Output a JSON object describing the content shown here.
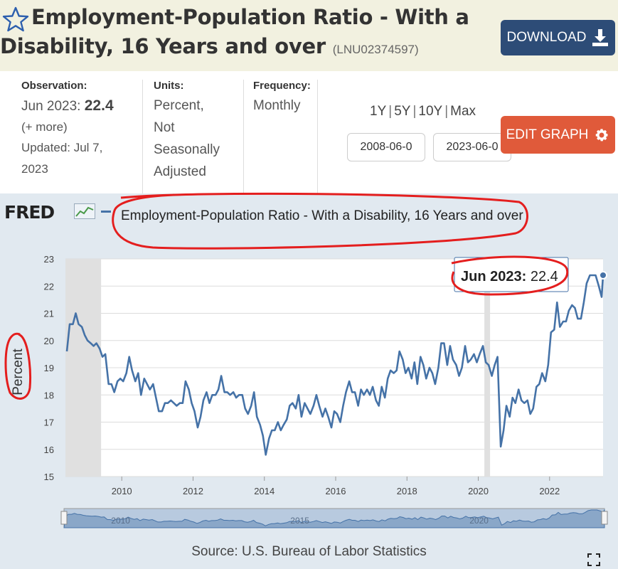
{
  "header": {
    "title": "Employment-Population Ratio - With a Disability, 16 Years and over",
    "series_id": "(LNU02374597)",
    "download_label": "DOWNLOAD",
    "star_icon": "star-icon",
    "download_icon": "download-icon"
  },
  "meta": {
    "observation_label": "Observation:",
    "observation_date": "Jun 2023:",
    "observation_value": "22.4",
    "more": "(+ more)",
    "updated_line1": "Updated: Jul 7,",
    "updated_line2": "2023",
    "units_label": "Units:",
    "units_lines": [
      "Percent,",
      "Not",
      "Seasonally",
      "Adjusted"
    ],
    "frequency_label": "Frequency:",
    "frequency_value": "Monthly"
  },
  "controls": {
    "ranges": [
      "1Y",
      "5Y",
      "10Y",
      "Max"
    ],
    "start_date": "2008-06-0",
    "end_date": "2023-06-0",
    "edit_label": "EDIT GRAPH",
    "edit_icon": "gear-icon"
  },
  "chart": {
    "logo": "FRED",
    "source": "Source: U.S. Bureau of Labor Statistics",
    "tooltip_date": "Jun 2023:",
    "tooltip_value": "22.4",
    "colors": {
      "line": "#4572a7",
      "recession": "#e0e0e0",
      "annotation": "#e41e1e"
    }
  },
  "chart_data": {
    "type": "line",
    "title": "Employment-Population Ratio - With a Disability, 16 Years and over",
    "ylabel": "Percent",
    "ylim": [
      15,
      23
    ],
    "yticks": [
      15,
      16,
      17,
      18,
      19,
      20,
      21,
      22,
      23
    ],
    "xlim": [
      2008.42,
      2023.5
    ],
    "xticks": [
      2010,
      2012,
      2014,
      2016,
      2018,
      2020,
      2022
    ],
    "grid": true,
    "recessions": [
      [
        2008.42,
        2009.42
      ],
      [
        2020.17,
        2020.33
      ]
    ],
    "navigator_labels": [
      "2010",
      "2015",
      "2020"
    ],
    "series": [
      {
        "values": [
          [
            2008.46,
            19.6
          ],
          [
            2008.54,
            20.6
          ],
          [
            2008.63,
            20.6
          ],
          [
            2008.71,
            21.0
          ],
          [
            2008.79,
            20.6
          ],
          [
            2008.88,
            20.5
          ],
          [
            2008.96,
            20.2
          ],
          [
            2009.04,
            20.0
          ],
          [
            2009.13,
            19.9
          ],
          [
            2009.21,
            19.8
          ],
          [
            2009.29,
            19.9
          ],
          [
            2009.38,
            19.7
          ],
          [
            2009.46,
            19.4
          ],
          [
            2009.54,
            19.5
          ],
          [
            2009.63,
            18.4
          ],
          [
            2009.71,
            18.4
          ],
          [
            2009.79,
            18.1
          ],
          [
            2009.88,
            18.5
          ],
          [
            2009.96,
            18.6
          ],
          [
            2010.04,
            18.5
          ],
          [
            2010.13,
            18.8
          ],
          [
            2010.21,
            19.4
          ],
          [
            2010.29,
            18.9
          ],
          [
            2010.38,
            18.5
          ],
          [
            2010.46,
            18.8
          ],
          [
            2010.54,
            18.0
          ],
          [
            2010.63,
            18.6
          ],
          [
            2010.71,
            18.4
          ],
          [
            2010.79,
            18.2
          ],
          [
            2010.88,
            18.4
          ],
          [
            2010.96,
            17.9
          ],
          [
            2011.04,
            17.4
          ],
          [
            2011.13,
            17.4
          ],
          [
            2011.21,
            17.7
          ],
          [
            2011.29,
            17.7
          ],
          [
            2011.38,
            17.8
          ],
          [
            2011.46,
            17.7
          ],
          [
            2011.54,
            17.6
          ],
          [
            2011.63,
            17.7
          ],
          [
            2011.71,
            17.7
          ],
          [
            2011.79,
            18.5
          ],
          [
            2011.88,
            18.2
          ],
          [
            2011.96,
            17.7
          ],
          [
            2012.04,
            17.4
          ],
          [
            2012.13,
            16.8
          ],
          [
            2012.21,
            17.2
          ],
          [
            2012.29,
            17.8
          ],
          [
            2012.38,
            18.1
          ],
          [
            2012.46,
            17.7
          ],
          [
            2012.54,
            18.0
          ],
          [
            2012.63,
            18.0
          ],
          [
            2012.71,
            18.2
          ],
          [
            2012.79,
            18.7
          ],
          [
            2012.88,
            18.1
          ],
          [
            2012.96,
            18.1
          ],
          [
            2013.04,
            18.0
          ],
          [
            2013.13,
            18.1
          ],
          [
            2013.21,
            17.9
          ],
          [
            2013.29,
            18.0
          ],
          [
            2013.38,
            18.0
          ],
          [
            2013.46,
            17.5
          ],
          [
            2013.54,
            17.3
          ],
          [
            2013.63,
            17.6
          ],
          [
            2013.71,
            18.1
          ],
          [
            2013.79,
            17.2
          ],
          [
            2013.88,
            16.9
          ],
          [
            2013.96,
            16.5
          ],
          [
            2014.04,
            15.8
          ],
          [
            2014.13,
            16.4
          ],
          [
            2014.21,
            16.7
          ],
          [
            2014.29,
            16.7
          ],
          [
            2014.38,
            17.0
          ],
          [
            2014.46,
            16.7
          ],
          [
            2014.54,
            16.9
          ],
          [
            2014.63,
            17.1
          ],
          [
            2014.71,
            17.6
          ],
          [
            2014.79,
            17.7
          ],
          [
            2014.88,
            17.5
          ],
          [
            2014.96,
            18.0
          ],
          [
            2015.04,
            17.2
          ],
          [
            2015.13,
            17.7
          ],
          [
            2015.21,
            17.5
          ],
          [
            2015.29,
            17.3
          ],
          [
            2015.38,
            17.6
          ],
          [
            2015.46,
            18.0
          ],
          [
            2015.54,
            17.6
          ],
          [
            2015.63,
            17.2
          ],
          [
            2015.71,
            17.5
          ],
          [
            2015.79,
            17.2
          ],
          [
            2015.88,
            16.8
          ],
          [
            2015.96,
            17.4
          ],
          [
            2016.04,
            17.3
          ],
          [
            2016.13,
            17.0
          ],
          [
            2016.21,
            17.6
          ],
          [
            2016.29,
            18.1
          ],
          [
            2016.38,
            18.5
          ],
          [
            2016.46,
            18.1
          ],
          [
            2016.54,
            18.1
          ],
          [
            2016.63,
            17.6
          ],
          [
            2016.71,
            18.2
          ],
          [
            2016.79,
            18.0
          ],
          [
            2016.88,
            18.2
          ],
          [
            2016.96,
            18.0
          ],
          [
            2017.04,
            18.3
          ],
          [
            2017.13,
            17.8
          ],
          [
            2017.21,
            17.6
          ],
          [
            2017.29,
            18.3
          ],
          [
            2017.38,
            17.9
          ],
          [
            2017.46,
            18.6
          ],
          [
            2017.54,
            18.9
          ],
          [
            2017.63,
            18.8
          ],
          [
            2017.71,
            18.9
          ],
          [
            2017.79,
            19.6
          ],
          [
            2017.88,
            19.3
          ],
          [
            2017.96,
            18.8
          ],
          [
            2018.04,
            19.0
          ],
          [
            2018.13,
            18.6
          ],
          [
            2018.21,
            19.2
          ],
          [
            2018.29,
            18.4
          ],
          [
            2018.38,
            19.4
          ],
          [
            2018.46,
            19.1
          ],
          [
            2018.54,
            18.6
          ],
          [
            2018.63,
            19.0
          ],
          [
            2018.71,
            18.8
          ],
          [
            2018.79,
            18.4
          ],
          [
            2018.88,
            19.0
          ],
          [
            2018.96,
            19.9
          ],
          [
            2019.04,
            19.9
          ],
          [
            2019.13,
            19.1
          ],
          [
            2019.21,
            19.8
          ],
          [
            2019.29,
            19.3
          ],
          [
            2019.38,
            19.1
          ],
          [
            2019.46,
            18.7
          ],
          [
            2019.54,
            19.0
          ],
          [
            2019.63,
            19.8
          ],
          [
            2019.71,
            19.2
          ],
          [
            2019.79,
            19.3
          ],
          [
            2019.88,
            19.5
          ],
          [
            2019.96,
            19.2
          ],
          [
            2020.04,
            19.5
          ],
          [
            2020.13,
            19.8
          ],
          [
            2020.21,
            19.2
          ],
          [
            2020.29,
            19.1
          ],
          [
            2020.38,
            18.7
          ],
          [
            2020.46,
            19.1
          ],
          [
            2020.54,
            19.4
          ],
          [
            2020.63,
            16.1
          ],
          [
            2020.71,
            16.7
          ],
          [
            2020.79,
            17.6
          ],
          [
            2020.88,
            17.2
          ],
          [
            2020.96,
            17.9
          ],
          [
            2021.04,
            17.7
          ],
          [
            2021.13,
            18.2
          ],
          [
            2021.21,
            17.8
          ],
          [
            2021.29,
            17.7
          ],
          [
            2021.38,
            17.8
          ],
          [
            2021.46,
            17.3
          ],
          [
            2021.54,
            17.5
          ],
          [
            2021.63,
            18.3
          ],
          [
            2021.71,
            18.4
          ],
          [
            2021.79,
            18.8
          ],
          [
            2021.88,
            18.5
          ],
          [
            2021.96,
            19.1
          ],
          [
            2022.04,
            20.3
          ],
          [
            2022.13,
            20.4
          ],
          [
            2022.21,
            21.4
          ],
          [
            2022.29,
            20.5
          ],
          [
            2022.38,
            20.7
          ],
          [
            2022.46,
            20.7
          ],
          [
            2022.54,
            21.1
          ],
          [
            2022.63,
            21.3
          ],
          [
            2022.71,
            21.2
          ],
          [
            2022.79,
            20.8
          ],
          [
            2022.88,
            20.8
          ],
          [
            2022.96,
            21.4
          ],
          [
            2023.04,
            22.1
          ],
          [
            2023.13,
            22.4
          ],
          [
            2023.21,
            22.4
          ],
          [
            2023.29,
            22.4
          ],
          [
            2023.38,
            22.0
          ],
          [
            2023.46,
            21.6
          ],
          [
            2023.5,
            22.4
          ]
        ]
      }
    ]
  }
}
